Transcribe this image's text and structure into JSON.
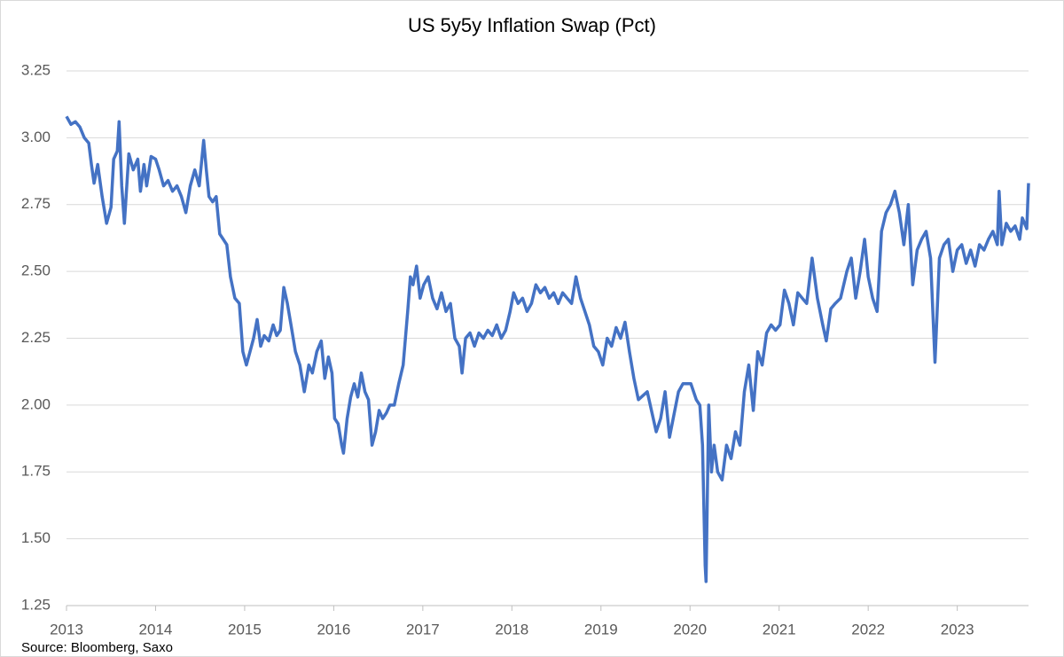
{
  "chart_data": {
    "type": "line",
    "title": "US 5y5y Inflation Swap (Pct)",
    "source": "Source: Bloomberg, Saxo",
    "xlim": [
      2013,
      2023.8
    ],
    "xticks": [
      2013,
      2014,
      2015,
      2016,
      2017,
      2018,
      2019,
      2020,
      2021,
      2022,
      2023
    ],
    "ylim": [
      1.25,
      3.25
    ],
    "yticks": [
      1.25,
      {
        "value": 1.5,
        "label": "1.50"
      },
      1.75,
      {
        "value": 2,
        "label": "2.00"
      },
      2.25,
      {
        "value": 2.5,
        "label": "2.50"
      },
      2.75,
      {
        "value": 3,
        "label": "3.00"
      },
      3.25
    ],
    "grid": true,
    "x": [
      2013.0,
      2013.05,
      2013.1,
      2013.15,
      2013.2,
      2013.25,
      2013.28,
      2013.31,
      2013.35,
      2013.4,
      2013.45,
      2013.5,
      2013.53,
      2013.57,
      2013.59,
      2013.62,
      2013.65,
      2013.7,
      2013.75,
      2013.8,
      2013.83,
      2013.87,
      2013.9,
      2013.95,
      2014.0,
      2014.04,
      2014.09,
      2014.14,
      2014.19,
      2014.24,
      2014.29,
      2014.34,
      2014.39,
      2014.44,
      2014.49,
      2014.54,
      2014.57,
      2014.6,
      2014.64,
      2014.68,
      2014.72,
      2014.76,
      2014.8,
      2014.84,
      2014.89,
      2014.94,
      2014.98,
      2015.02,
      2015.06,
      2015.1,
      2015.14,
      2015.18,
      2015.22,
      2015.27,
      2015.32,
      2015.36,
      2015.4,
      2015.44,
      2015.48,
      2015.52,
      2015.57,
      2015.62,
      2015.67,
      2015.72,
      2015.76,
      2015.81,
      2015.86,
      2015.9,
      2015.94,
      2015.98,
      2016.01,
      2016.05,
      2016.09,
      2016.11,
      2016.15,
      2016.19,
      2016.23,
      2016.27,
      2016.31,
      2016.35,
      2016.39,
      2016.43,
      2016.47,
      2016.51,
      2016.55,
      2016.59,
      2016.63,
      2016.68,
      2016.73,
      2016.78,
      2016.83,
      2016.86,
      2016.89,
      2016.93,
      2016.97,
      2017.01,
      2017.06,
      2017.11,
      2017.16,
      2017.21,
      2017.26,
      2017.31,
      2017.36,
      2017.41,
      2017.44,
      2017.48,
      2017.53,
      2017.58,
      2017.63,
      2017.68,
      2017.73,
      2017.78,
      2017.83,
      2017.88,
      2017.93,
      2017.98,
      2018.02,
      2018.07,
      2018.12,
      2018.17,
      2018.22,
      2018.27,
      2018.32,
      2018.37,
      2018.42,
      2018.47,
      2018.52,
      2018.57,
      2018.62,
      2018.67,
      2018.72,
      2018.77,
      2018.82,
      2018.87,
      2018.92,
      2018.97,
      2019.02,
      2019.07,
      2019.12,
      2019.17,
      2019.22,
      2019.27,
      2019.32,
      2019.37,
      2019.42,
      2019.52,
      2019.62,
      2019.67,
      2019.72,
      2019.77,
      2019.87,
      2019.92,
      2020.01,
      2020.07,
      2020.11,
      2020.14,
      2020.17,
      2020.18,
      2020.21,
      2020.24,
      2020.27,
      2020.31,
      2020.36,
      2020.41,
      2020.46,
      2020.51,
      2020.56,
      2020.61,
      2020.66,
      2020.71,
      2020.76,
      2020.81,
      2020.86,
      2020.91,
      2020.96,
      2021.01,
      2021.06,
      2021.11,
      2021.16,
      2021.21,
      2021.26,
      2021.31,
      2021.37,
      2021.43,
      2021.49,
      2021.53,
      2021.58,
      2021.63,
      2021.69,
      2021.76,
      2021.81,
      2021.86,
      2021.91,
      2021.96,
      2022.0,
      2022.05,
      2022.1,
      2022.15,
      2022.2,
      2022.25,
      2022.3,
      2022.35,
      2022.4,
      2022.45,
      2022.5,
      2022.55,
      2022.6,
      2022.65,
      2022.7,
      2022.75,
      2022.8,
      2022.85,
      2022.9,
      2022.95,
      2023.0,
      2023.05,
      2023.1,
      2023.15,
      2023.2,
      2023.25,
      2023.3,
      2023.35,
      2023.4,
      2023.45,
      2023.47,
      2023.5,
      2023.55,
      2023.6,
      2023.65,
      2023.7,
      2023.73,
      2023.78,
      2023.8
    ],
    "series": [
      {
        "name": "US 5y5y",
        "color": "#4472c4",
        "values": [
          3.08,
          3.05,
          3.06,
          3.04,
          3.0,
          2.98,
          2.9,
          2.83,
          2.9,
          2.78,
          2.68,
          2.74,
          2.92,
          2.95,
          3.06,
          2.82,
          2.68,
          2.94,
          2.88,
          2.92,
          2.8,
          2.9,
          2.82,
          2.93,
          2.92,
          2.88,
          2.82,
          2.84,
          2.8,
          2.82,
          2.78,
          2.72,
          2.82,
          2.88,
          2.82,
          2.99,
          2.88,
          2.78,
          2.76,
          2.78,
          2.64,
          2.62,
          2.6,
          2.48,
          2.4,
          2.38,
          2.2,
          2.15,
          2.2,
          2.25,
          2.32,
          2.22,
          2.26,
          2.24,
          2.3,
          2.26,
          2.28,
          2.44,
          2.38,
          2.3,
          2.2,
          2.15,
          2.05,
          2.15,
          2.12,
          2.2,
          2.24,
          2.1,
          2.18,
          2.12,
          1.95,
          1.93,
          1.85,
          1.82,
          1.95,
          2.03,
          2.08,
          2.03,
          2.12,
          2.05,
          2.02,
          1.85,
          1.9,
          1.98,
          1.95,
          1.97,
          2.0,
          2.0,
          2.08,
          2.15,
          2.35,
          2.48,
          2.45,
          2.52,
          2.4,
          2.45,
          2.48,
          2.4,
          2.36,
          2.42,
          2.35,
          2.38,
          2.25,
          2.22,
          2.12,
          2.25,
          2.27,
          2.22,
          2.27,
          2.25,
          2.28,
          2.26,
          2.3,
          2.25,
          2.28,
          2.35,
          2.42,
          2.38,
          2.4,
          2.35,
          2.38,
          2.45,
          2.42,
          2.44,
          2.4,
          2.42,
          2.38,
          2.42,
          2.4,
          2.38,
          2.48,
          2.4,
          2.35,
          2.3,
          2.22,
          2.2,
          2.15,
          2.25,
          2.22,
          2.29,
          2.25,
          2.31,
          2.2,
          2.1,
          2.02,
          2.05,
          1.9,
          1.95,
          2.05,
          1.88,
          2.05,
          2.08,
          2.08,
          2.02,
          2.0,
          1.85,
          1.4,
          1.34,
          2.0,
          1.75,
          1.85,
          1.75,
          1.72,
          1.85,
          1.8,
          1.9,
          1.85,
          2.05,
          2.15,
          1.98,
          2.2,
          2.15,
          2.27,
          2.3,
          2.28,
          2.3,
          2.43,
          2.38,
          2.3,
          2.42,
          2.4,
          2.38,
          2.55,
          2.4,
          2.3,
          2.24,
          2.36,
          2.38,
          2.4,
          2.5,
          2.55,
          2.4,
          2.5,
          2.62,
          2.48,
          2.4,
          2.35,
          2.65,
          2.72,
          2.75,
          2.8,
          2.72,
          2.6,
          2.75,
          2.45,
          2.58,
          2.62,
          2.65,
          2.55,
          2.16,
          2.55,
          2.6,
          2.62,
          2.5,
          2.58,
          2.6,
          2.53,
          2.58,
          2.52,
          2.6,
          2.58,
          2.62,
          2.65,
          2.6,
          2.8,
          2.6,
          2.68,
          2.65,
          2.67,
          2.62,
          2.7,
          2.66,
          2.83
        ]
      }
    ]
  }
}
